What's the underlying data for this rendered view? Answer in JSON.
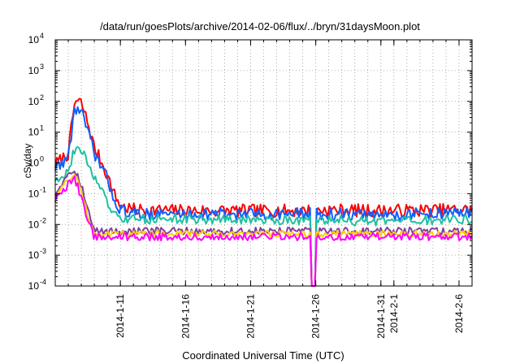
{
  "chart_data": {
    "type": "line",
    "title": "/data/run/goesPlots/archive/2014-02-06/flux/../bryn/31daysMoon.plot",
    "xlabel": "Coordinated Universal Time (UTC)",
    "ylabel": "cSv/day",
    "yscale": "log",
    "ylim": [
      0.0001,
      10000
    ],
    "xlim": [
      "2014-01-06",
      "2014-02-07"
    ],
    "grid": true,
    "x_tick_labels": [
      "2014-1-11",
      "2014-1-16",
      "2014-1-21",
      "2014-1-26",
      "2014-1-31",
      "2014-2-1",
      "2014-2-6"
    ],
    "x_tick_dates": [
      "2014-01-11",
      "2014-01-16",
      "2014-01-21",
      "2014-01-26",
      "2014-01-31",
      "2014-02-01",
      "2014-02-06"
    ],
    "y_tick_exponents": [
      -4,
      -3,
      -2,
      -1,
      0,
      1,
      2,
      3,
      4
    ],
    "y_tick_base": "10",
    "series": [
      {
        "color": "#ff0000",
        "points": [
          [
            "2014-01-06",
            0.9
          ],
          [
            "2014-01-07",
            2
          ],
          [
            "2014-01-07.5",
            100
          ],
          [
            "2014-01-08",
            90
          ],
          [
            "2014-01-08.5",
            20
          ],
          [
            "2014-01-09",
            3
          ],
          [
            "2014-01-09.5",
            1.2
          ],
          [
            "2014-01-10",
            0.4
          ],
          [
            "2014-01-10.5",
            0.1
          ],
          [
            "2014-01-11",
            0.04
          ],
          [
            "2014-01-12",
            0.03
          ],
          [
            "2014-01-16",
            0.028
          ],
          [
            "2014-01-21",
            0.028
          ],
          [
            "2014-01-25.7",
            0.028
          ],
          [
            "2014-01-26",
            0.03
          ],
          [
            "2014-01-31",
            0.028
          ],
          [
            "2014-02-07",
            0.03
          ]
        ]
      },
      {
        "color": "#1060ff",
        "points": [
          [
            "2014-01-06",
            0.7
          ],
          [
            "2014-01-07",
            1.5
          ],
          [
            "2014-01-07.5",
            60
          ],
          [
            "2014-01-08",
            50
          ],
          [
            "2014-01-08.5",
            10
          ],
          [
            "2014-01-09",
            2
          ],
          [
            "2014-01-09.5",
            0.8
          ],
          [
            "2014-01-10",
            0.3
          ],
          [
            "2014-01-10.5",
            0.07
          ],
          [
            "2014-01-11",
            0.03
          ],
          [
            "2014-01-12",
            0.022
          ],
          [
            "2014-01-16",
            0.022
          ],
          [
            "2014-01-21",
            0.022
          ],
          [
            "2014-01-25.7",
            0.022
          ],
          [
            "2014-01-26",
            0.022
          ],
          [
            "2014-01-31",
            0.02
          ],
          [
            "2014-02-07",
            0.025
          ]
        ]
      },
      {
        "color": "#20c0a0",
        "points": [
          [
            "2014-01-06",
            0.3
          ],
          [
            "2014-01-07",
            0.5
          ],
          [
            "2014-01-07.5",
            3
          ],
          [
            "2014-01-08",
            2.5
          ],
          [
            "2014-01-08.5",
            1
          ],
          [
            "2014-01-09",
            0.35
          ],
          [
            "2014-01-09.5",
            0.15
          ],
          [
            "2014-01-10",
            0.05
          ],
          [
            "2014-01-10.5",
            0.02
          ],
          [
            "2014-01-11",
            0.015
          ],
          [
            "2014-01-16",
            0.015
          ],
          [
            "2014-01-21",
            0.014
          ],
          [
            "2014-01-25.7",
            0.014
          ],
          [
            "2014-01-26",
            0.014
          ],
          [
            "2014-01-31",
            0.012
          ],
          [
            "2014-02-07",
            0.015
          ]
        ]
      },
      {
        "color": "#8040a0",
        "points": [
          [
            "2014-01-06",
            0.1
          ],
          [
            "2014-01-07",
            0.5
          ],
          [
            "2014-01-07.5",
            0.6
          ],
          [
            "2014-01-08",
            0.2
          ],
          [
            "2014-01-08.5",
            0.03
          ],
          [
            "2014-01-09",
            0.006
          ],
          [
            "2014-01-11",
            0.006
          ],
          [
            "2014-01-16",
            0.006
          ],
          [
            "2014-01-21",
            0.006
          ],
          [
            "2014-01-25.7",
            0.006
          ],
          [
            "2014-01-26",
            0.006
          ],
          [
            "2014-02-07",
            0.006
          ]
        ]
      },
      {
        "color": "#ffd000",
        "points": [
          [
            "2014-01-06",
            0.08
          ],
          [
            "2014-01-07",
            0.3
          ],
          [
            "2014-01-07.5",
            0.4
          ],
          [
            "2014-01-08",
            0.12
          ],
          [
            "2014-01-08.5",
            0.02
          ],
          [
            "2014-01-09",
            0.005
          ],
          [
            "2014-01-11",
            0.005
          ],
          [
            "2014-01-16",
            0.005
          ],
          [
            "2014-01-21",
            0.005
          ],
          [
            "2014-01-25.7",
            0.005
          ],
          [
            "2014-01-26",
            0.005
          ],
          [
            "2014-02-07",
            0.005
          ]
        ]
      },
      {
        "color": "#ff00ff",
        "points": [
          [
            "2014-01-06",
            0.06
          ],
          [
            "2014-01-07",
            0.2
          ],
          [
            "2014-01-07.5",
            0.3
          ],
          [
            "2014-01-08",
            0.08
          ],
          [
            "2014-01-08.5",
            0.012
          ],
          [
            "2014-01-09",
            0.004
          ],
          [
            "2014-01-11",
            0.004
          ],
          [
            "2014-01-16",
            0.004
          ],
          [
            "2014-01-21",
            0.004
          ],
          [
            "2014-01-25.7",
            0.004
          ],
          [
            "2014-01-26",
            0.004
          ],
          [
            "2014-02-07",
            0.004
          ]
        ]
      }
    ]
  }
}
